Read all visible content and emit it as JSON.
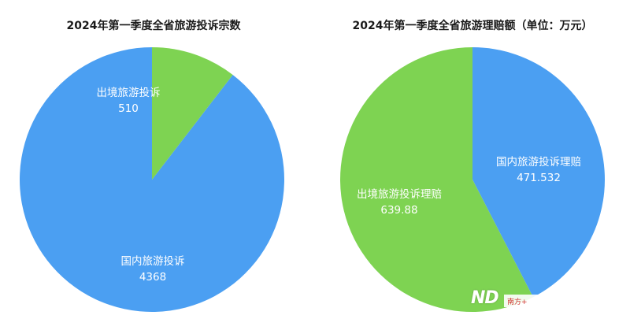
{
  "chart_data": [
    {
      "type": "pie",
      "title": "2024年第一季度全省旅游投诉宗数",
      "categories": [
        "国内旅游投诉",
        "出境旅游投诉"
      ],
      "values": [
        4368,
        510
      ],
      "value_labels": [
        "4368",
        "510"
      ],
      "colors": [
        "#4B9FF2",
        "#7ED352"
      ],
      "start_angle_deg": 0,
      "direction": "counterclockwise",
      "legend": "none"
    },
    {
      "type": "pie",
      "title": "2024年第一季度全省旅游理赔额（单位：万元）",
      "categories": [
        "国内旅游投诉理赔",
        "出境旅游投诉理赔"
      ],
      "values": [
        471.532,
        639.88
      ],
      "value_labels": [
        "471.532",
        "639.88"
      ],
      "colors": [
        "#4B9FF2",
        "#7ED352"
      ],
      "start_angle_deg": 0,
      "direction": "clockwise",
      "legend": "none"
    }
  ],
  "watermark": {
    "mark": "ND",
    "text": "南方+"
  }
}
